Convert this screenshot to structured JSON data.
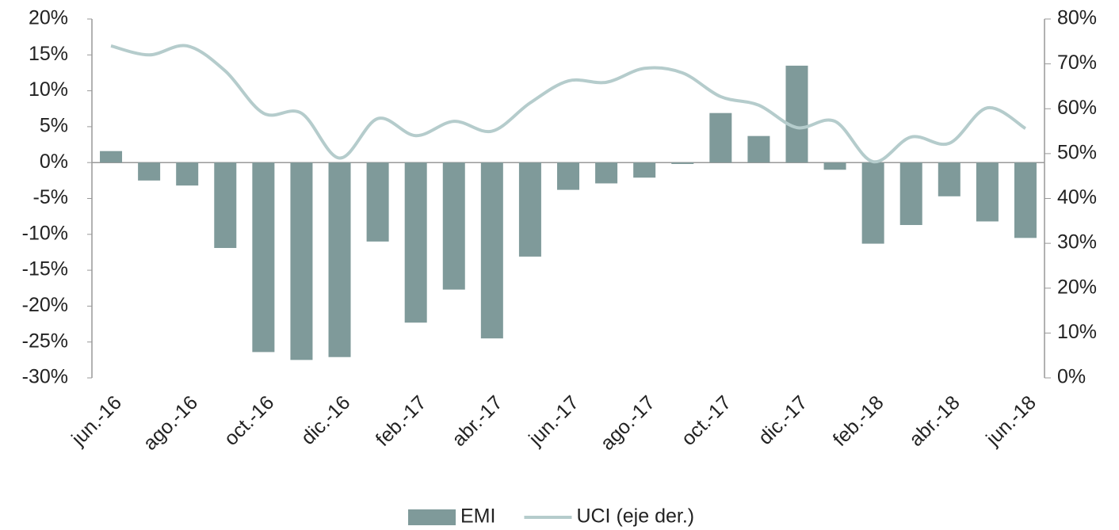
{
  "chart_data": {
    "type": "bar_line",
    "categories": [
      "jun.-16",
      null,
      "ago.-16",
      null,
      "oct.-16",
      null,
      "dic.-16",
      null,
      "feb.-17",
      null,
      "abr.-17",
      null,
      "jun.-17",
      null,
      "ago.-17",
      null,
      "oct.-17",
      null,
      "dic.-17",
      null,
      "feb.-18",
      null,
      "abr.-18",
      null,
      "jun.-18"
    ],
    "series": [
      {
        "name": "EMI",
        "type": "bar",
        "color": "#7f9a9a",
        "values": [
          1.6,
          -2.5,
          -3.2,
          -11.9,
          -26.4,
          -27.5,
          -27.1,
          -11.0,
          -22.3,
          -17.7,
          -24.5,
          -13.1,
          -3.8,
          -2.9,
          -2.1,
          -0.2,
          6.9,
          3.7,
          13.5,
          -1.0,
          -11.3,
          -8.7,
          -4.7,
          -8.2,
          -10.5
        ]
      },
      {
        "name": "UCI (eje der.)",
        "type": "line",
        "axis": "y2",
        "color": "#b5cccc",
        "values": [
          74,
          72,
          74,
          68.4,
          59,
          59,
          49,
          57.8,
          54,
          57.2,
          55,
          61.3,
          66.2,
          65.9,
          69,
          68,
          62.7,
          60.8,
          55.8,
          57.2,
          48.2,
          53.7,
          52.3,
          60.2,
          55.6
        ]
      }
    ],
    "ylim": [
      -30,
      20
    ],
    "yticks": [
      {
        "value": -30,
        "label": "-30%"
      },
      {
        "value": -25,
        "label": "-25%"
      },
      {
        "value": -20,
        "label": "-20%"
      },
      {
        "value": -15,
        "label": "-15%"
      },
      {
        "value": -10,
        "label": "-10%"
      },
      {
        "value": -5,
        "label": "-5%"
      },
      {
        "value": 0,
        "label": "0%"
      },
      {
        "value": 5,
        "label": "5%"
      },
      {
        "value": 10,
        "label": "10%"
      },
      {
        "value": 15,
        "label": "15%"
      },
      {
        "value": 20,
        "label": "20%"
      }
    ],
    "y2lim": [
      0,
      80
    ],
    "y2ticks": [
      {
        "value": 0,
        "label": "0%"
      },
      {
        "value": 10,
        "label": "10%"
      },
      {
        "value": 20,
        "label": "20%"
      },
      {
        "value": 30,
        "label": "30%"
      },
      {
        "value": 40,
        "label": "40%"
      },
      {
        "value": 50,
        "label": "50%"
      },
      {
        "value": 60,
        "label": "60%"
      },
      {
        "value": 70,
        "label": "70%"
      },
      {
        "value": 80,
        "label": "80%"
      }
    ],
    "legend": "bottom"
  }
}
